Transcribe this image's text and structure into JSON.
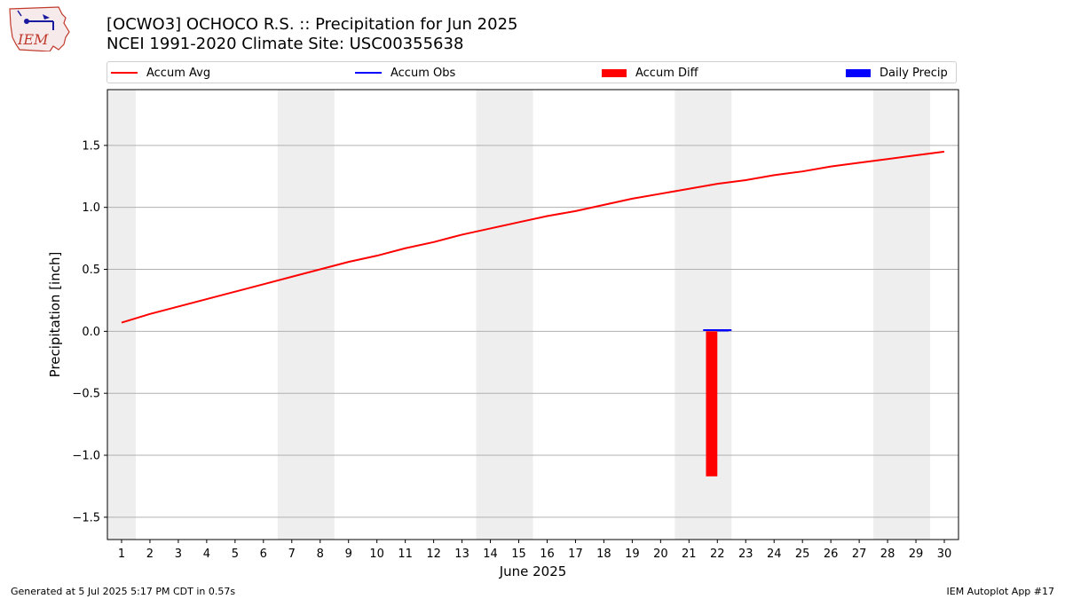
{
  "header": {
    "title_line1": "[OCWO3] OCHOCO R.S. :: Precipitation for Jun 2025",
    "title_line2": "NCEI 1991-2020 Climate Site: USC00355638",
    "logo_text": "IEM"
  },
  "footer": {
    "generated": "Generated at 5 Jul 2025 5:17 PM CDT in 0.57s",
    "app": "IEM Autoplot App #17"
  },
  "colors": {
    "avg": "#ff0000",
    "obs": "#0000ff",
    "diff": "#ff0000",
    "daily": "#0000ff",
    "weekend": "#eeeeee",
    "grid": "#b0b0b0"
  },
  "chart_data": {
    "type": "line",
    "xlabel": "June 2025",
    "ylabel": "Precipitation [inch]",
    "xlim": [
      0.5,
      30.5
    ],
    "ylim": [
      -1.68,
      1.95
    ],
    "yticks": [
      -1.5,
      -1.0,
      -0.5,
      0.0,
      0.5,
      1.0,
      1.5
    ],
    "ytick_labels": [
      "−1.5",
      "−1.0",
      "−0.5",
      "0.0",
      "0.5",
      "1.0",
      "1.5"
    ],
    "x": [
      1,
      2,
      3,
      4,
      5,
      6,
      7,
      8,
      9,
      10,
      11,
      12,
      13,
      14,
      15,
      16,
      17,
      18,
      19,
      20,
      21,
      22,
      23,
      24,
      25,
      26,
      27,
      28,
      29,
      30
    ],
    "xtick_labels": [
      "1",
      "2",
      "3",
      "4",
      "5",
      "6",
      "7",
      "8",
      "9",
      "10",
      "11",
      "12",
      "13",
      "14",
      "15",
      "16",
      "17",
      "18",
      "19",
      "20",
      "21",
      "22",
      "23",
      "24",
      "25",
      "26",
      "27",
      "28",
      "29",
      "30"
    ],
    "weekend_shading": [
      [
        0.5,
        1.5
      ],
      [
        6.5,
        8.5
      ],
      [
        13.5,
        15.5
      ],
      [
        20.5,
        22.5
      ],
      [
        27.5,
        29.5
      ]
    ],
    "grid": "horizontal",
    "legend_position": "top",
    "series": [
      {
        "name": "Accum Avg",
        "kind": "line",
        "x": [
          1,
          2,
          3,
          4,
          5,
          6,
          7,
          8,
          9,
          10,
          11,
          12,
          13,
          14,
          15,
          16,
          17,
          18,
          19,
          20,
          21,
          22,
          23,
          24,
          25,
          26,
          27,
          28,
          29,
          30
        ],
        "values": [
          0.07,
          0.14,
          0.2,
          0.26,
          0.32,
          0.38,
          0.44,
          0.5,
          0.56,
          0.61,
          0.67,
          0.72,
          0.78,
          0.83,
          0.88,
          0.93,
          0.97,
          1.02,
          1.07,
          1.11,
          1.15,
          1.19,
          1.22,
          1.26,
          1.29,
          1.33,
          1.36,
          1.39,
          1.42,
          1.45
        ]
      },
      {
        "name": "Accum Obs",
        "kind": "line",
        "x": [
          22
        ],
        "values": [
          0.01
        ]
      },
      {
        "name": "Accum Diff",
        "kind": "bar",
        "x": [
          22
        ],
        "values": [
          -1.17
        ]
      },
      {
        "name": "Daily Precip",
        "kind": "bar",
        "x": [
          22
        ],
        "values": [
          0.01
        ]
      }
    ]
  }
}
